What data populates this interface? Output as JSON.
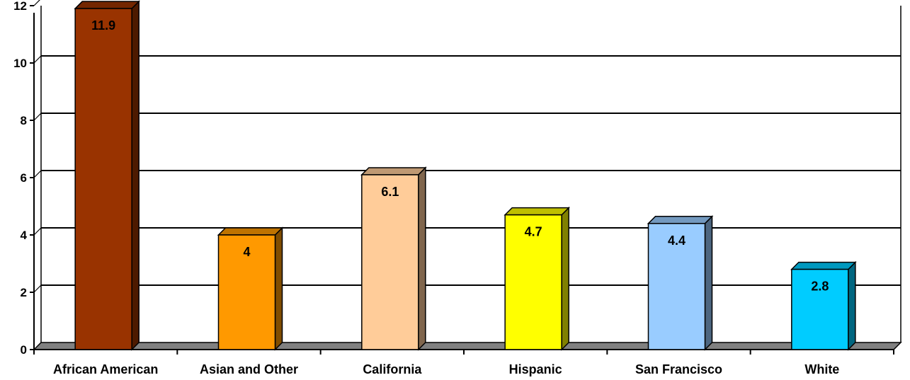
{
  "chart_data": {
    "type": "bar",
    "categories": [
      "African American",
      "Asian and Other",
      "California",
      "Hispanic",
      "San Francisco",
      "White"
    ],
    "values": [
      11.9,
      4,
      6.1,
      4.7,
      4.4,
      2.8
    ],
    "value_labels": [
      "11.9",
      "4",
      "6.1",
      "4.7",
      "4.4",
      "2.8"
    ],
    "ylim": [
      0,
      12
    ],
    "yticks": [
      0,
      2,
      4,
      6,
      8,
      10,
      12
    ],
    "ytick_labels": [
      "0",
      "2",
      "4",
      "6",
      "8",
      "10",
      "12"
    ],
    "grid": true,
    "style": "3d-column",
    "title": "",
    "xlabel": "",
    "ylabel": "",
    "colors": [
      "#993300",
      "#FF9900",
      "#FFCC99",
      "#FFFF00",
      "#99CCFF",
      "#00CCFF"
    ]
  }
}
